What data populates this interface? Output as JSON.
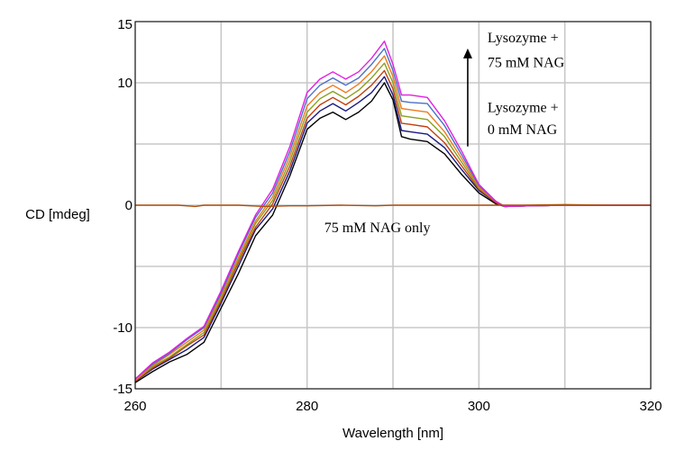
{
  "chart_data": {
    "type": "line",
    "title": "",
    "xlabel": "Wavelength [nm]",
    "ylabel": "CD [mdeg]",
    "xlim": [
      260,
      320
    ],
    "ylim": [
      -15,
      15
    ],
    "x_ticks": [
      260,
      280,
      300,
      320
    ],
    "y_ticks": [
      -15,
      -10,
      0,
      10,
      15
    ],
    "grid": true,
    "annotations": [
      {
        "text": "Lysozyme      +",
        "x": 301,
        "y": 13.3
      },
      {
        "text": "75 mM NAG",
        "x": 301,
        "y": 11.3
      },
      {
        "text": "Lysozyme +",
        "x": 301,
        "y": 7.6
      },
      {
        "text": "0 mM NAG",
        "x": 301,
        "y": 5.8
      },
      {
        "text": "75 mM NAG only",
        "x": 282,
        "y": -2.2
      }
    ],
    "arrow": {
      "x": 298.7,
      "from_y": 4.8,
      "to_y": 12.8
    },
    "series": [
      {
        "color": "#000000",
        "values": [
          [
            260,
            -14.5
          ],
          [
            262,
            -13.6
          ],
          [
            264,
            -12.8
          ],
          [
            266,
            -12.2
          ],
          [
            268,
            -11.2
          ],
          [
            270,
            -8.4
          ],
          [
            272,
            -5.6
          ],
          [
            274,
            -2.5
          ],
          [
            276,
            -0.8
          ],
          [
            278,
            2.4
          ],
          [
            280,
            6.2
          ],
          [
            281.5,
            7.1
          ],
          [
            283,
            7.6
          ],
          [
            284.5,
            7.0
          ],
          [
            286,
            7.6
          ],
          [
            287.5,
            8.5
          ],
          [
            289,
            10.0
          ],
          [
            290,
            8.6
          ],
          [
            291,
            5.6
          ],
          [
            292,
            5.4
          ],
          [
            294,
            5.2
          ],
          [
            296,
            4.2
          ],
          [
            298,
            2.5
          ],
          [
            300,
            1.0
          ],
          [
            302,
            0.1
          ],
          [
            303,
            -0.1
          ],
          [
            306,
            -0.05
          ],
          [
            310,
            0.0
          ],
          [
            315,
            0.0
          ],
          [
            320,
            0.0
          ]
        ]
      },
      {
        "color": "#1a1a80",
        "values": [
          [
            260,
            -14.4
          ],
          [
            262,
            -13.4
          ],
          [
            264,
            -12.6
          ],
          [
            266,
            -11.8
          ],
          [
            268,
            -10.8
          ],
          [
            270,
            -8.0
          ],
          [
            272,
            -5.0
          ],
          [
            274,
            -2.0
          ],
          [
            276,
            -0.3
          ],
          [
            278,
            2.8
          ],
          [
            280,
            6.7
          ],
          [
            281.5,
            7.7
          ],
          [
            283,
            8.3
          ],
          [
            284.5,
            7.7
          ],
          [
            286,
            8.4
          ],
          [
            287.5,
            9.2
          ],
          [
            289,
            10.5
          ],
          [
            290,
            9.0
          ],
          [
            291,
            6.1
          ],
          [
            292,
            6.0
          ],
          [
            294,
            5.8
          ],
          [
            296,
            4.7
          ],
          [
            298,
            2.9
          ],
          [
            300,
            1.2
          ],
          [
            302,
            0.2
          ],
          [
            303,
            -0.1
          ],
          [
            306,
            -0.05
          ],
          [
            310,
            0.0
          ],
          [
            315,
            0.0
          ],
          [
            320,
            0.0
          ]
        ]
      },
      {
        "color": "#c04010",
        "values": [
          [
            260,
            -14.4
          ],
          [
            262,
            -13.3
          ],
          [
            264,
            -12.5
          ],
          [
            266,
            -11.5
          ],
          [
            268,
            -10.6
          ],
          [
            270,
            -7.8
          ],
          [
            272,
            -4.7
          ],
          [
            274,
            -1.8
          ],
          [
            276,
            0.1
          ],
          [
            278,
            3.2
          ],
          [
            280,
            7.1
          ],
          [
            281.5,
            8.2
          ],
          [
            283,
            8.8
          ],
          [
            284.5,
            8.2
          ],
          [
            286,
            8.9
          ],
          [
            287.5,
            9.8
          ],
          [
            289,
            11.0
          ],
          [
            290,
            9.5
          ],
          [
            291,
            6.7
          ],
          [
            292,
            6.6
          ],
          [
            294,
            6.4
          ],
          [
            296,
            5.1
          ],
          [
            298,
            3.2
          ],
          [
            300,
            1.3
          ],
          [
            302,
            0.2
          ],
          [
            303,
            -0.1
          ],
          [
            306,
            -0.05
          ],
          [
            310,
            0.0
          ],
          [
            315,
            0.0
          ],
          [
            320,
            0.0
          ]
        ]
      },
      {
        "color": "#88a020",
        "values": [
          [
            260,
            -14.3
          ],
          [
            262,
            -13.2
          ],
          [
            264,
            -12.4
          ],
          [
            266,
            -11.4
          ],
          [
            268,
            -10.4
          ],
          [
            270,
            -7.6
          ],
          [
            272,
            -4.5
          ],
          [
            274,
            -1.5
          ],
          [
            276,
            0.4
          ],
          [
            278,
            3.6
          ],
          [
            280,
            7.6
          ],
          [
            281.5,
            8.7
          ],
          [
            283,
            9.3
          ],
          [
            284.5,
            8.7
          ],
          [
            286,
            9.4
          ],
          [
            287.5,
            10.4
          ],
          [
            289,
            11.6
          ],
          [
            290,
            10.0
          ],
          [
            291,
            7.3
          ],
          [
            292,
            7.2
          ],
          [
            294,
            7.0
          ],
          [
            296,
            5.6
          ],
          [
            298,
            3.5
          ],
          [
            300,
            1.4
          ],
          [
            302,
            0.3
          ],
          [
            303,
            -0.1
          ],
          [
            306,
            -0.05
          ],
          [
            310,
            0.0
          ],
          [
            315,
            0.0
          ],
          [
            320,
            0.0
          ]
        ]
      },
      {
        "color": "#ee7a20",
        "values": [
          [
            260,
            -14.3
          ],
          [
            262,
            -13.1
          ],
          [
            264,
            -12.2
          ],
          [
            266,
            -11.2
          ],
          [
            268,
            -10.2
          ],
          [
            270,
            -7.4
          ],
          [
            272,
            -4.3
          ],
          [
            274,
            -1.3
          ],
          [
            276,
            0.7
          ],
          [
            278,
            4.0
          ],
          [
            280,
            8.1
          ],
          [
            281.5,
            9.2
          ],
          [
            283,
            9.8
          ],
          [
            284.5,
            9.2
          ],
          [
            286,
            9.9
          ],
          [
            287.5,
            10.9
          ],
          [
            289,
            12.2
          ],
          [
            290,
            10.5
          ],
          [
            291,
            7.9
          ],
          [
            292,
            7.8
          ],
          [
            294,
            7.6
          ],
          [
            296,
            6.0
          ],
          [
            298,
            3.8
          ],
          [
            300,
            1.5
          ],
          [
            302,
            0.3
          ],
          [
            303,
            -0.1
          ],
          [
            306,
            -0.05
          ],
          [
            310,
            0.0
          ],
          [
            315,
            0.0
          ],
          [
            320,
            0.0
          ]
        ]
      },
      {
        "color": "#4a70c8",
        "values": [
          [
            260,
            -14.2
          ],
          [
            262,
            -13.0
          ],
          [
            264,
            -12.1
          ],
          [
            266,
            -11.0
          ],
          [
            268,
            -10.0
          ],
          [
            270,
            -7.2
          ],
          [
            272,
            -4.0
          ],
          [
            274,
            -1.0
          ],
          [
            276,
            1.0
          ],
          [
            278,
            4.4
          ],
          [
            280,
            8.7
          ],
          [
            281.5,
            9.8
          ],
          [
            283,
            10.4
          ],
          [
            284.5,
            9.8
          ],
          [
            286,
            10.4
          ],
          [
            287.5,
            11.5
          ],
          [
            289,
            12.8
          ],
          [
            290,
            11.0
          ],
          [
            291,
            8.5
          ],
          [
            292,
            8.4
          ],
          [
            294,
            8.3
          ],
          [
            296,
            6.5
          ],
          [
            298,
            4.1
          ],
          [
            300,
            1.6
          ],
          [
            302,
            0.3
          ],
          [
            303,
            -0.1
          ],
          [
            306,
            -0.05
          ],
          [
            310,
            0.0
          ],
          [
            315,
            0.0
          ],
          [
            320,
            0.0
          ]
        ]
      },
      {
        "color": "#e020e0",
        "values": [
          [
            260,
            -14.2
          ],
          [
            262,
            -12.9
          ],
          [
            264,
            -12.0
          ],
          [
            266,
            -10.9
          ],
          [
            268,
            -9.9
          ],
          [
            270,
            -7.0
          ],
          [
            272,
            -3.8
          ],
          [
            274,
            -0.8
          ],
          [
            276,
            1.3
          ],
          [
            278,
            4.8
          ],
          [
            280,
            9.2
          ],
          [
            281.5,
            10.3
          ],
          [
            283,
            10.9
          ],
          [
            284.5,
            10.3
          ],
          [
            286,
            10.9
          ],
          [
            287.5,
            12.0
          ],
          [
            289,
            13.4
          ],
          [
            290,
            11.5
          ],
          [
            291,
            9.0
          ],
          [
            292,
            9.0
          ],
          [
            294,
            8.8
          ],
          [
            296,
            6.9
          ],
          [
            298,
            4.4
          ],
          [
            300,
            1.7
          ],
          [
            302,
            0.3
          ],
          [
            303,
            -0.1
          ],
          [
            306,
            -0.05
          ],
          [
            310,
            0.0
          ],
          [
            315,
            0.0
          ],
          [
            320,
            0.0
          ]
        ]
      },
      {
        "color": "#b05010",
        "values": [
          [
            260,
            0.0
          ],
          [
            265,
            0.0
          ],
          [
            267,
            -0.1
          ],
          [
            268,
            0.0
          ],
          [
            272,
            0.0
          ],
          [
            275,
            -0.1
          ],
          [
            278,
            -0.05
          ],
          [
            280,
            -0.05
          ],
          [
            284,
            0.0
          ],
          [
            288,
            -0.05
          ],
          [
            290,
            0.0
          ],
          [
            295,
            0.0
          ],
          [
            300,
            0.0
          ],
          [
            305,
            0.0
          ],
          [
            310,
            0.05
          ],
          [
            315,
            0.0
          ],
          [
            320,
            0.0
          ]
        ]
      }
    ]
  }
}
